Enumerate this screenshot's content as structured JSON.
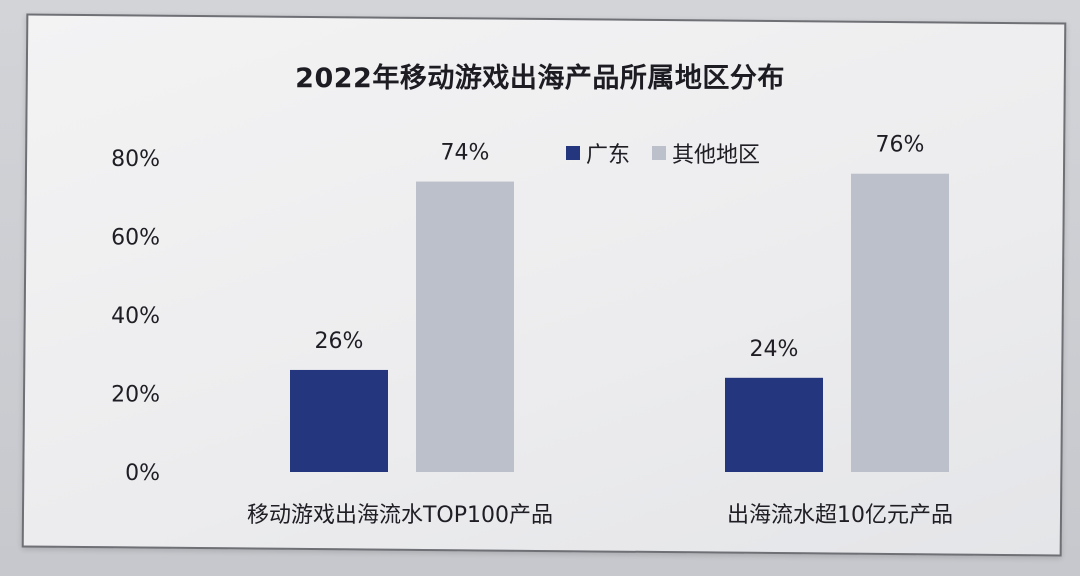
{
  "chart_data": {
    "type": "bar",
    "title": "2022年移动游戏出海产品所属地区分布",
    "categories": [
      "移动游戏出海流水TOP100产品",
      "出海流水超10亿元产品"
    ],
    "series": [
      {
        "name": "广东",
        "values": [
          26,
          24
        ],
        "color": "#24367e",
        "labels": [
          "26%",
          "24%"
        ]
      },
      {
        "name": "其他地区",
        "values": [
          74,
          76
        ],
        "color": "#bcc0cb",
        "labels": [
          "74%",
          "76%"
        ]
      }
    ],
    "ylim": [
      0,
      80
    ],
    "yticks": [
      "0%",
      "20%",
      "40%",
      "60%",
      "80%"
    ],
    "ytick_values": [
      0,
      20,
      40,
      60,
      80
    ],
    "grid": false,
    "legend_position": "top-center"
  }
}
